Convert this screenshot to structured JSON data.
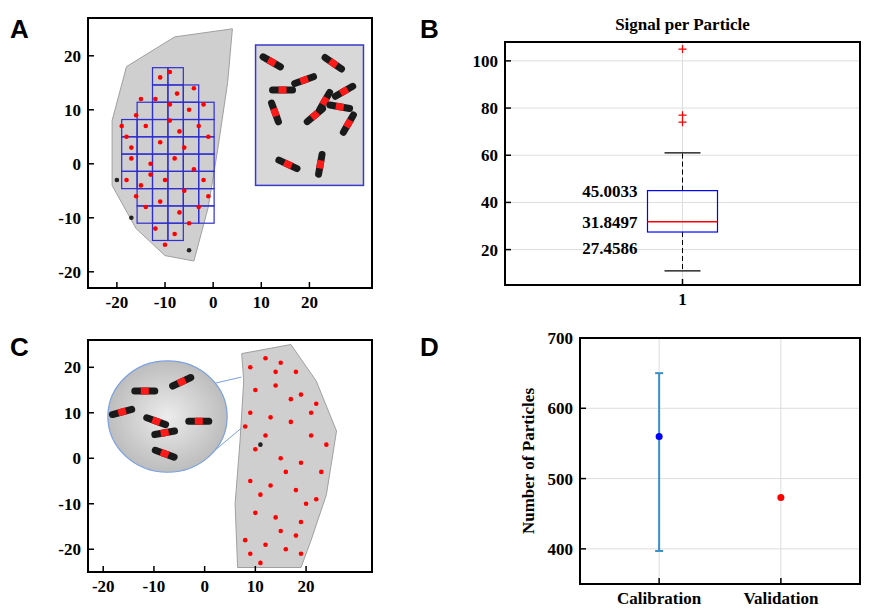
{
  "chart_data": [
    {
      "panel_label": "A",
      "type": "scatter",
      "xlim": [
        -26,
        33
      ],
      "ylim": [
        -23,
        27
      ],
      "xticks": [
        -20,
        -10,
        0,
        10,
        20
      ],
      "yticks": [
        -20,
        -10,
        0,
        10,
        20
      ],
      "outline": {
        "x": [
          -18,
          -8,
          4,
          3,
          1,
          -1,
          -4,
          -10,
          -16,
          -21,
          -21
        ],
        "y": [
          18,
          23.5,
          25,
          15,
          3,
          -8,
          -18,
          -17,
          -12,
          -4,
          8
        ]
      },
      "cells": {
        "color": "#2f2fd0",
        "size": 3.2,
        "x": [
          -12.6,
          -9.4,
          -12.6,
          -9.4,
          -6.2,
          -15.8,
          -12.6,
          -9.4,
          -6.2,
          -3.0,
          -19,
          -15.8,
          -12.6,
          -9.4,
          -6.2,
          -3.0,
          -19,
          -15.8,
          -12.6,
          -9.4,
          -6.2,
          -3.0,
          -19,
          -15.8,
          -12.6,
          -9.4,
          -6.2,
          -3.0,
          -19,
          -15.8,
          -12.6,
          -9.4,
          -6.2,
          -3.0,
          -15.8,
          -12.6,
          -9.4,
          -6.2,
          -3.0,
          -15.8,
          -12.6,
          -9.4,
          -6.2,
          -3.0,
          -12.6,
          -9.4
        ],
        "y": [
          14.6,
          14.6,
          11.4,
          11.4,
          11.4,
          8.2,
          8.2,
          8.2,
          8.2,
          8.2,
          5.0,
          5.0,
          5.0,
          5.0,
          5.0,
          5.0,
          1.8,
          1.8,
          1.8,
          1.8,
          1.8,
          1.8,
          -1.4,
          -1.4,
          -1.4,
          -1.4,
          -1.4,
          -1.4,
          -4.6,
          -4.6,
          -4.6,
          -4.6,
          -4.6,
          -4.6,
          -7.8,
          -7.8,
          -7.8,
          -7.8,
          -7.8,
          -11.0,
          -11.0,
          -11.0,
          -11.0,
          -11.0,
          -14.2,
          -14.2
        ]
      },
      "series": [
        {
          "color": "#ff0000",
          "marker": "dot",
          "x": [
            -11,
            -9,
            -7.5,
            -12,
            -5,
            -16,
            -14,
            -9,
            -3,
            -18,
            -11,
            -6,
            -1,
            -17,
            -13,
            -8,
            -4,
            -18,
            -15,
            -10,
            -6,
            -2,
            -14,
            -11,
            -7,
            -3,
            -12,
            -8,
            -10,
            -15,
            -2,
            -19,
            -7,
            -13,
            -5,
            -16,
            -9,
            -4,
            -1,
            -17
          ],
          "values": [
            16,
            17,
            13,
            12,
            10,
            9,
            7,
            8,
            7,
            5,
            4,
            3,
            5,
            1,
            0,
            1,
            -1,
            -3,
            -4,
            -3,
            -5,
            -3,
            -8,
            -7,
            -9,
            -8,
            -12,
            -13,
            -15,
            12,
            11,
            7,
            6,
            -2,
            -11,
            -6,
            11,
            14,
            -6,
            3
          ]
        },
        {
          "color": "#222222",
          "marker": "dot",
          "x": [
            -20,
            -17,
            -5
          ],
          "values": [
            -3,
            -10,
            -16
          ]
        }
      ]
    },
    {
      "panel_label": "B",
      "type": "box",
      "title": "Signal per Particle",
      "categories": [
        "1"
      ],
      "boxes": [
        {
          "whisker_low": 11,
          "q1": 27.4586,
          "median": 31.8497,
          "q3": 45.0033,
          "whisker_high": 61,
          "outliers": [
            105,
            77,
            74
          ]
        }
      ],
      "ylim": [
        5,
        108
      ],
      "yticks": [
        20,
        40,
        60,
        80,
        100
      ],
      "grid": true,
      "data_labels": true,
      "color": "#0000ff"
    },
    {
      "panel_label": "C",
      "type": "scatter",
      "xlim": [
        -23,
        33
      ],
      "ylim": [
        -25,
        26
      ],
      "xticks": [
        -20,
        -10,
        0,
        10,
        20
      ],
      "yticks": [
        -20,
        -10,
        0,
        10,
        20
      ],
      "outline": {
        "x": [
          7.3,
          17,
          22,
          26,
          24,
          21,
          19,
          6.5,
          6,
          7,
          7.7
        ],
        "y": [
          23,
          25,
          17,
          6,
          -8,
          -18,
          -24,
          -24,
          -10,
          4,
          17
        ]
      },
      "series": [
        {
          "color": "#ff0000",
          "marker": "dot",
          "x": [
            9,
            12,
            15,
            18,
            10,
            14,
            19,
            22,
            9,
            13,
            17,
            21,
            24,
            10,
            15,
            19,
            23,
            9,
            13,
            18,
            22,
            10,
            14,
            19,
            8,
            12,
            16,
            19,
            11,
            15,
            17,
            12,
            20,
            16,
            8,
            11,
            21,
            14,
            18,
            9
          ],
          "values": [
            20,
            22,
            21,
            19,
            15,
            16,
            14,
            12,
            10,
            9,
            8,
            5,
            3,
            2,
            0,
            -1,
            -3,
            -5,
            -6,
            -7,
            -9,
            -12,
            -13,
            -14,
            -18,
            -19,
            -20,
            -21,
            -23,
            -16,
            13,
            5,
            -10,
            -3,
            7,
            -8,
            10,
            19,
            -17,
            -21
          ]
        },
        {
          "color": "#222222",
          "marker": "dot",
          "x": [
            11
          ],
          "values": [
            3
          ]
        }
      ]
    },
    {
      "panel_label": "D",
      "type": "errorbar",
      "categories": [
        "Calibration",
        "Validation"
      ],
      "values": [
        560,
        473
      ],
      "lower": [
        397,
        null
      ],
      "upper": [
        650,
        null
      ],
      "colors": [
        "#0000ff",
        "#ff0000"
      ],
      "marker": "dot",
      "ylabel": "Number of Particles",
      "ylim": [
        350,
        700
      ],
      "yticks": [
        400,
        500,
        600,
        700
      ],
      "grid": true
    }
  ]
}
